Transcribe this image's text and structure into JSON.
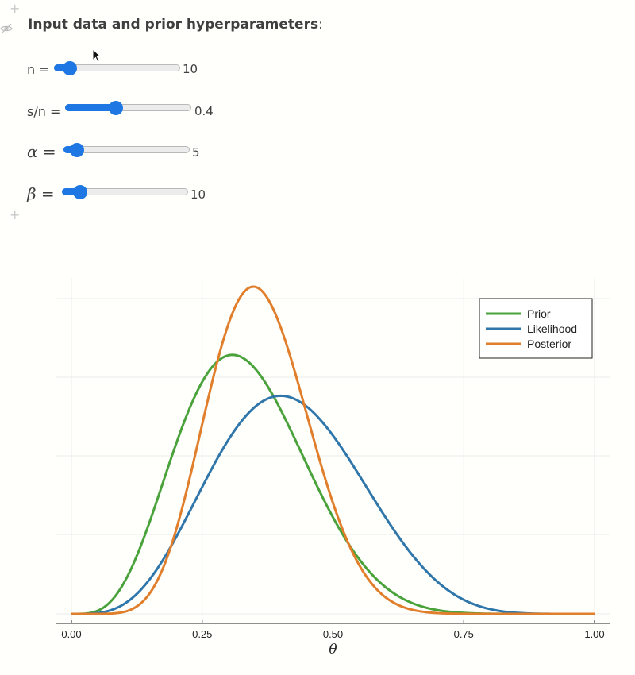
{
  "header": {
    "title": "Input data and prior hyperparameters",
    "suffix": ":"
  },
  "controls": {
    "n": {
      "label": "n =",
      "value": "10",
      "fraction": 0.12
    },
    "s_over_n": {
      "label": "s/n =",
      "value": "0.4",
      "fraction": 0.4
    },
    "alpha": {
      "symbol": "α",
      "eq": "=",
      "value": "5",
      "fraction": 0.1
    },
    "beta": {
      "symbol": "β",
      "eq": "=",
      "value": "10",
      "fraction": 0.14
    }
  },
  "chart_data": {
    "type": "line",
    "xlabel": "θ",
    "xlim": [
      0,
      1
    ],
    "x_ticks": [
      "0.00",
      "0.25",
      "0.50",
      "0.75",
      "1.00"
    ],
    "x_tick_values": [
      0,
      0.25,
      0.5,
      0.75,
      1.0
    ],
    "y_axis_visible": false,
    "grid": true,
    "legend": "top-right",
    "series": [
      {
        "name": "Prior",
        "color": "#4aa23b",
        "distribution": "beta",
        "alpha": 5,
        "beta": 10
      },
      {
        "name": "Likelihood",
        "color": "#2f76aa",
        "distribution": "beta",
        "alpha": 5,
        "beta": 7
      },
      {
        "name": "Posterior",
        "color": "#e07e2b",
        "distribution": "beta",
        "alpha": 9,
        "beta": 16
      }
    ]
  }
}
